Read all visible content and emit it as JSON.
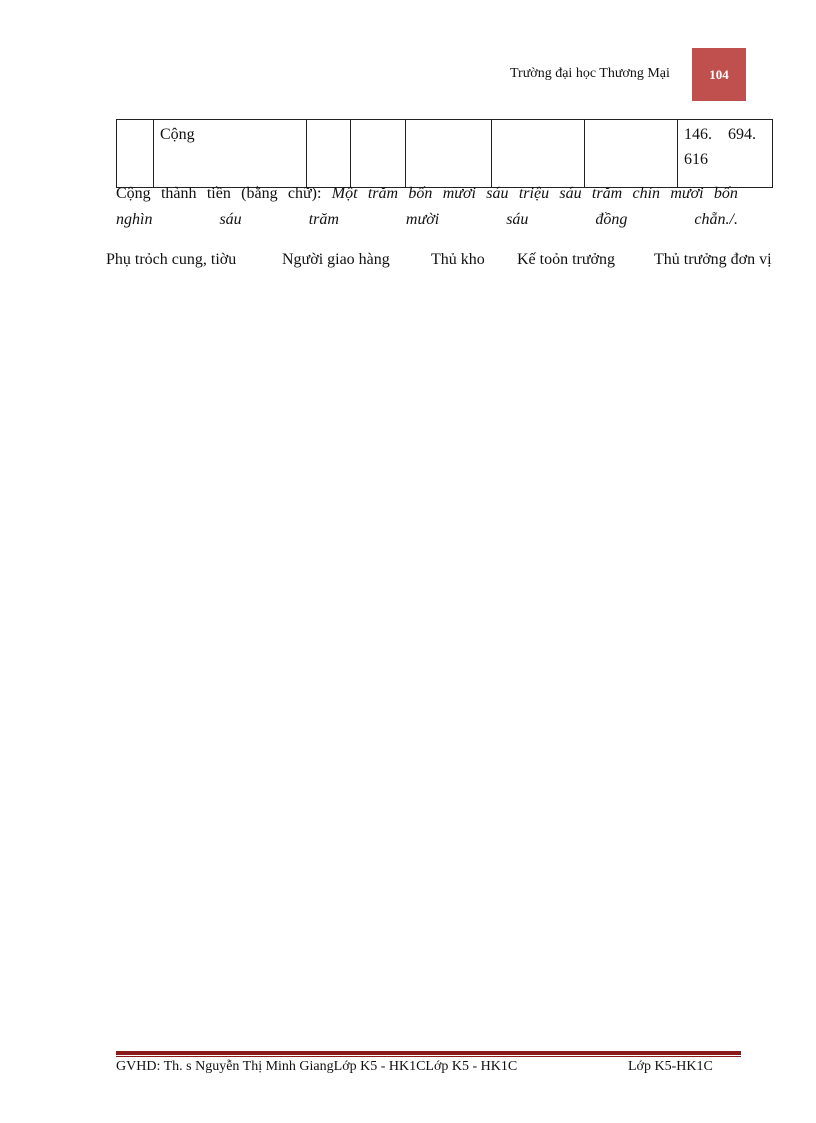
{
  "header": {
    "school": "Trường đại học Thương Mại",
    "page_number": "104",
    "accent": "#c0504d"
  },
  "table": {
    "row": {
      "label": "Cộng",
      "amount_line1": "146.    694.",
      "amount_line2": "616"
    }
  },
  "total_words": {
    "line1_words": [
      "Cộng",
      "thành",
      "tiền",
      "(bằng",
      "chữ):",
      "Một",
      "trăm",
      "bốn",
      "mươi",
      "sáu",
      "triệu",
      "sáu",
      "trăm",
      "chín",
      "mươi",
      "bốn"
    ],
    "line2_words": [
      "nghìn",
      "sáu",
      "trăm",
      "mười",
      "sáu",
      "đồng",
      "chẵn./."
    ]
  },
  "signatures": [
    "Phụ trỏch cung, tiờu",
    "Người giao hàng",
    "Thủ kho",
    "Kế toỏn trưởng",
    "Thủ trưởng đơn vị"
  ],
  "footer": {
    "left": "GVHD: Th. s Nguyễn Thị Minh GiangLớp  K5 - HK1CLớp K5 - HK1C",
    "right": "Lớp K5-HK1C",
    "rule_color": "#8b1a1a"
  }
}
